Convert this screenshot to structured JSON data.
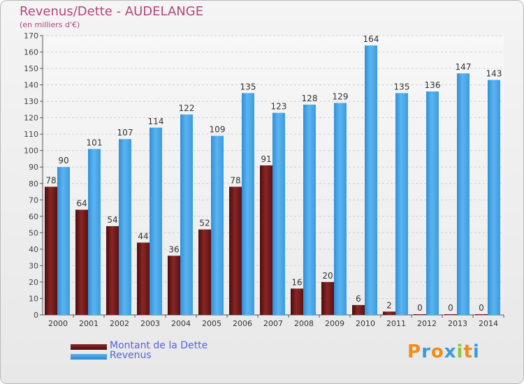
{
  "chart_data": {
    "type": "bar",
    "title": "Revenus/Dette - AUDELANGE",
    "subtitle": "(en milliers d'€)",
    "categories": [
      "2000",
      "2001",
      "2002",
      "2003",
      "2004",
      "2005",
      "2006",
      "2007",
      "2008",
      "2009",
      "2010",
      "2011",
      "2012",
      "2013",
      "2014"
    ],
    "series": [
      {
        "name": "Montant de la Dette",
        "color": "#7a1c1c",
        "values": [
          78,
          64,
          54,
          44,
          36,
          52,
          78,
          91,
          16,
          20,
          6,
          2,
          0,
          0,
          0
        ]
      },
      {
        "name": "Revenus",
        "color": "#3b9be0",
        "values": [
          90,
          101,
          107,
          114,
          122,
          109,
          135,
          123,
          128,
          129,
          164,
          135,
          136,
          147,
          143
        ]
      }
    ],
    "ylim": [
      0,
      170
    ],
    "yticks": [
      0,
      10,
      20,
      30,
      40,
      50,
      60,
      70,
      80,
      90,
      100,
      110,
      120,
      130,
      140,
      150,
      160,
      170
    ],
    "grid": true,
    "legend_position": "bottom-left"
  },
  "logo": {
    "letters": [
      "P",
      "r",
      "o",
      "x",
      "i",
      "t",
      "i"
    ],
    "colors": [
      "#f28c1a",
      "#3b9be0",
      "#f28c1a",
      "#3b9be0",
      "#8cc63f",
      "#f28c1a",
      "#3b9be0"
    ]
  }
}
